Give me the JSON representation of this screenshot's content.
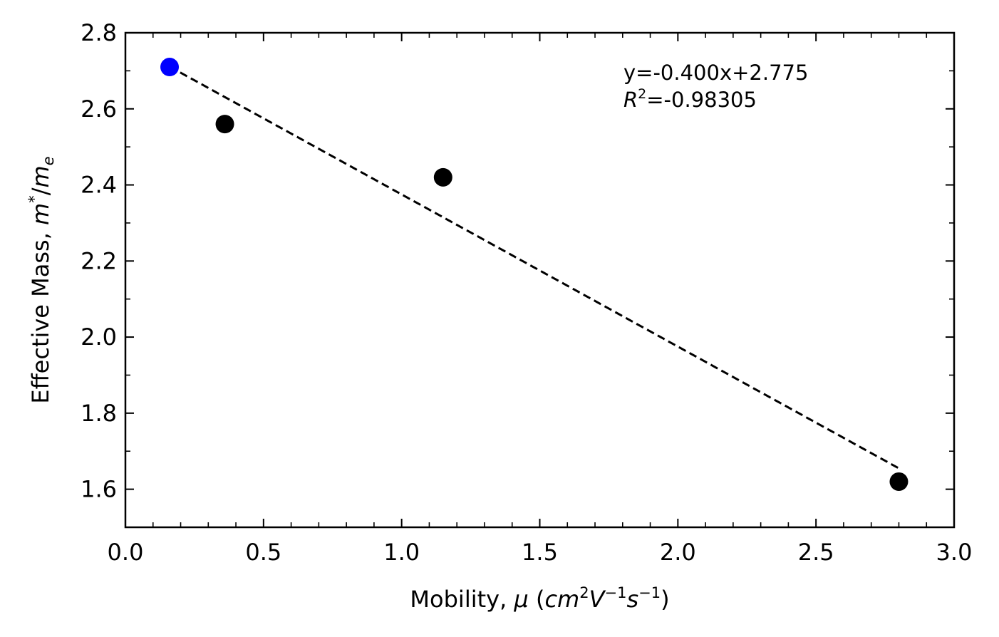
{
  "chart_data": {
    "type": "scatter",
    "title": "",
    "xlabel": {
      "prefix": "Mobility, ",
      "mu": "μ",
      "open": " (",
      "cm": "cm",
      "exp2": "2",
      "V": "V",
      "expm1": "−1",
      "s": "s",
      "expm1b": "−1",
      "close": ")"
    },
    "ylabel": {
      "prefix": "Effective Mass, ",
      "m": "m",
      "star": "*",
      "slash": "/",
      "m2": "m",
      "sub_e": "e"
    },
    "xlim": [
      0.0,
      3.0
    ],
    "ylim": [
      1.5,
      2.8
    ],
    "x_ticks": [
      "0.0",
      "0.5",
      "1.0",
      "1.5",
      "2.0",
      "2.5",
      "3.0"
    ],
    "x_tick_values": [
      0.0,
      0.5,
      1.0,
      1.5,
      2.0,
      2.5,
      3.0
    ],
    "y_ticks": [
      "1.6",
      "1.8",
      "2.0",
      "2.2",
      "2.4",
      "2.6",
      "2.8"
    ],
    "y_tick_values": [
      1.6,
      1.8,
      2.0,
      2.2,
      2.4,
      2.6,
      2.8
    ],
    "x_minor_step": 0.1,
    "y_minor_step": 0.1,
    "points": [
      {
        "x": 0.16,
        "y": 2.71,
        "color": "#0000ff"
      },
      {
        "x": 0.36,
        "y": 2.56,
        "color": "#000000"
      },
      {
        "x": 1.15,
        "y": 2.42,
        "color": "#000000"
      },
      {
        "x": 2.8,
        "y": 1.62,
        "color": "#000000"
      }
    ],
    "fit_line": {
      "slope": -0.4,
      "intercept": 2.775,
      "x_start": 0.16,
      "x_end": 2.8,
      "style": "dashed",
      "color": "#000000"
    },
    "annotation": {
      "equation": "y=-0.400x+2.775",
      "r_symbol": "R",
      "r_exp": "2",
      "r_value": "=-0.98305"
    },
    "grid": false,
    "legend": "none"
  }
}
